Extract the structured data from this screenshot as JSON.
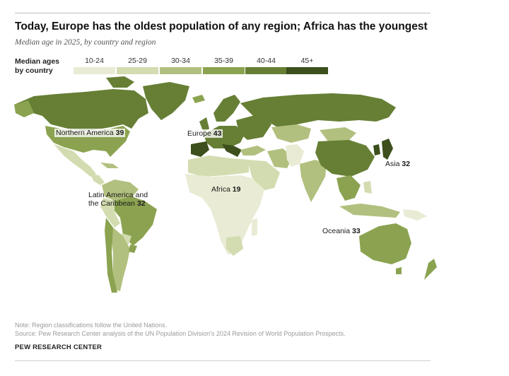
{
  "title": "Today, Europe has the oldest population of any region; Africa has the youngest",
  "subtitle": "Median age in 2025, by country and region",
  "legend": {
    "title_line1": "Median ages",
    "title_line2": "by country",
    "items": [
      {
        "label": "10-24",
        "color": "#e9ebd4"
      },
      {
        "label": "25-29",
        "color": "#d3dcb0"
      },
      {
        "label": "30-34",
        "color": "#b1c07e"
      },
      {
        "label": "35-39",
        "color": "#8ba350"
      },
      {
        "label": "40-44",
        "color": "#667f35"
      },
      {
        "label": "45+",
        "color": "#3c4f1c"
      }
    ]
  },
  "regions": {
    "northern_america": {
      "name": "Northern America",
      "value": "39"
    },
    "europe": {
      "name": "Europe",
      "value": "43"
    },
    "asia": {
      "name": "Asia",
      "value": "32"
    },
    "africa": {
      "name": "Africa",
      "value": "19"
    },
    "latin_america": {
      "name_line1": "Latin America and",
      "name_line2": "the Caribbean",
      "value": "32"
    },
    "oceania": {
      "name": "Oceania",
      "value": "33"
    }
  },
  "notes": {
    "note": "Note: Region classifications follow the United Nations.",
    "source": "Source: Pew Research Center analysis of the UN Population Division's 2024 Revision of World Population Prospects."
  },
  "brand": "PEW RESEARCH CENTER"
}
